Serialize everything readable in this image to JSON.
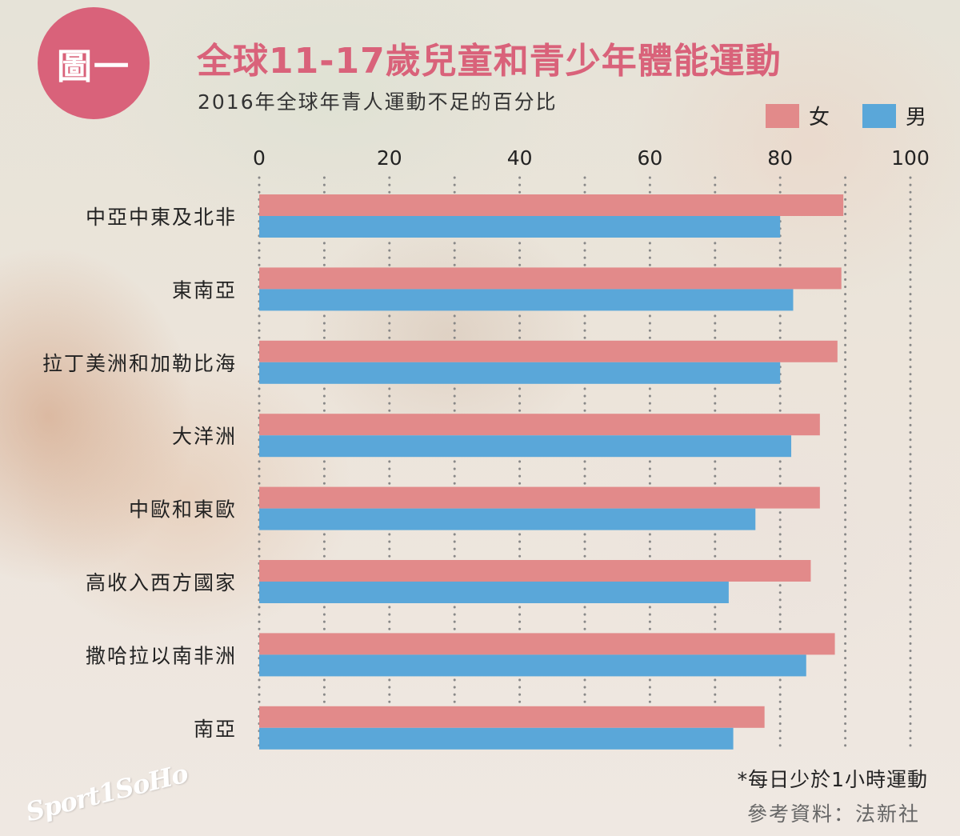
{
  "badge": "圖一",
  "title": "全球11-17歲兒童和青少年體能運動",
  "subtitle": "2016年全球年青人運動不足的百分比",
  "legend": [
    {
      "label": "女",
      "color": "#e28a8a"
    },
    {
      "label": "男",
      "color": "#5aa7d9"
    }
  ],
  "note": "*每日少於1小時運動",
  "source": "參考資料：法新社",
  "logo": "Sport1SoHo",
  "chart_data": {
    "type": "bar",
    "orientation": "horizontal",
    "categories": [
      "中亞中東及北非",
      "東南亞",
      "拉丁美洲和加勒比海",
      "大洋洲",
      "中歐和東歐",
      "高收入西方國家",
      "撒哈拉以南非洲",
      "南亞"
    ],
    "series": [
      {
        "name": "女",
        "color": "#e28a8a",
        "values": [
          89.7,
          89.4,
          88.8,
          86.1,
          86.1,
          84.7,
          88.4,
          77.6
        ]
      },
      {
        "name": "男",
        "color": "#5aa7d9",
        "values": [
          80.0,
          82.0,
          80.0,
          81.7,
          76.2,
          72.1,
          84.0,
          72.8
        ]
      }
    ],
    "xlim": [
      0,
      100
    ],
    "xticks": [
      0,
      20,
      40,
      60,
      80,
      100
    ],
    "grid": true,
    "legend_position": "top-right"
  }
}
